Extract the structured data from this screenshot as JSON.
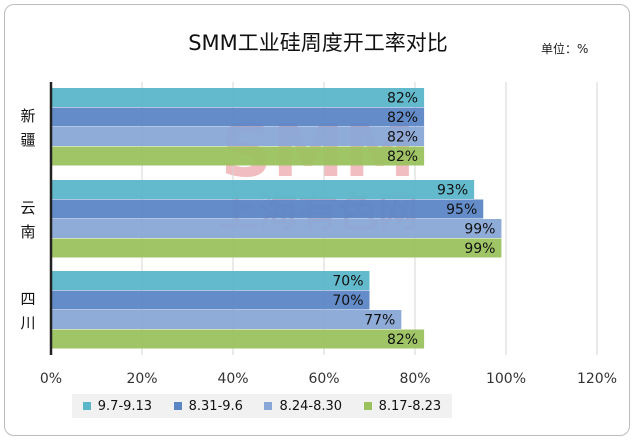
{
  "chart_data": {
    "type": "bar",
    "orientation": "horizontal",
    "title": "SMM工业硅周度开工率对比",
    "unit_label": "单位：%",
    "watermark": "SMM 上海有色网",
    "categories": [
      "新疆",
      "云南",
      "四川"
    ],
    "series": [
      {
        "name": "9.7-9.13",
        "color": "#5ab6c9",
        "values": [
          82,
          93,
          70
        ]
      },
      {
        "name": "8.31-9.6",
        "color": "#5b86c6",
        "values": [
          82,
          95,
          70
        ]
      },
      {
        "name": "8.24-8.30",
        "color": "#89a7d6",
        "values": [
          82,
          99,
          77
        ]
      },
      {
        "name": "8.17-8.23",
        "color": "#9bc25f",
        "values": [
          82,
          99,
          82
        ]
      }
    ],
    "data_labels": [
      [
        "82%",
        "82%",
        "82%",
        "82%"
      ],
      [
        "93%",
        "95%",
        "99%",
        "99%"
      ],
      [
        "70%",
        "70%",
        "77%",
        "82%"
      ]
    ],
    "xlim": [
      0,
      120
    ],
    "xticks": [
      0,
      20,
      40,
      60,
      80,
      100,
      120
    ],
    "xtick_labels": [
      "0%",
      "20%",
      "40%",
      "60%",
      "80%",
      "100%",
      "120%"
    ],
    "grid": "vertical",
    "legend_position": "bottom"
  }
}
